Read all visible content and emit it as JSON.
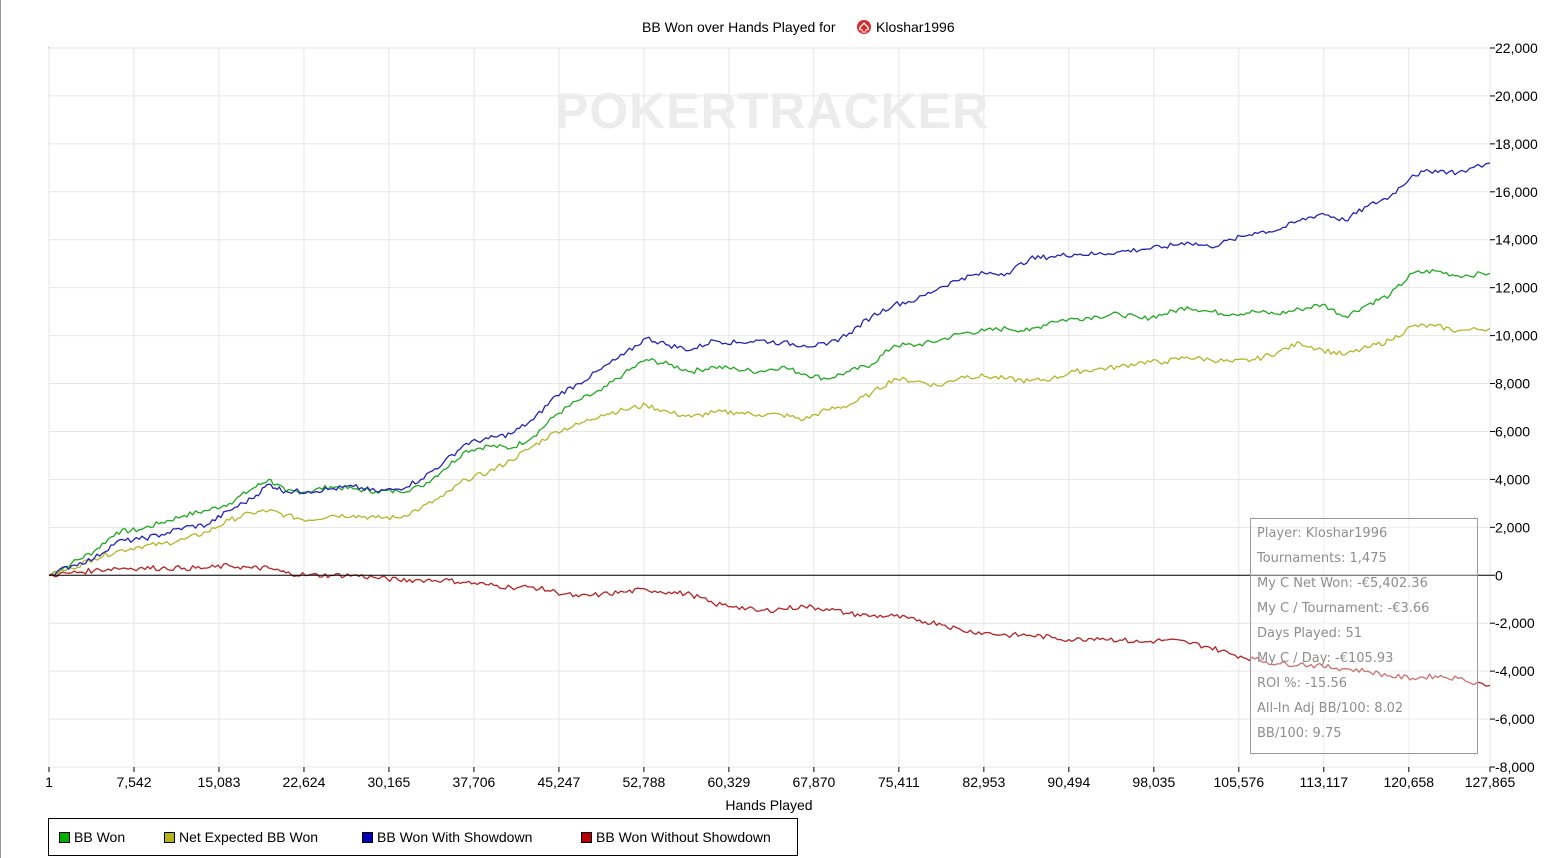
{
  "chart_data": {
    "type": "line",
    "title": "BB Won over Hands Played for",
    "player_name": "Kloshar1996",
    "site_icon": "pokerstars-spade-icon",
    "watermark": "POKERTRACKER",
    "xlabel": "Hands Played",
    "ylabel": "",
    "x_ticks": [
      "1",
      "7,542",
      "15,083",
      "22,624",
      "30,165",
      "37,706",
      "45,247",
      "52,788",
      "60,329",
      "67,870",
      "75,411",
      "82,953",
      "90,494",
      "98,035",
      "105,576",
      "113,117",
      "120,658",
      "127,865"
    ],
    "y_ticks": [
      "22,000",
      "20,000",
      "18,000",
      "16,000",
      "14,000",
      "12,000",
      "10,000",
      "8,000",
      "6,000",
      "4,000",
      "2,000",
      "0",
      "-2,000",
      "-4,000",
      "-6,000",
      "-8,000"
    ],
    "xlim": [
      1,
      127865
    ],
    "ylim": [
      -8000,
      22000
    ],
    "grid": true,
    "legend_position": "bottom-left",
    "x": [
      1,
      2000,
      4000,
      6000,
      8000,
      10000,
      12000,
      14000,
      16000,
      18000,
      19500,
      21000,
      23000,
      25000,
      27000,
      29000,
      31000,
      33000,
      35000,
      37000,
      39000,
      41000,
      43000,
      45000,
      47000,
      49000,
      51000,
      53000,
      55000,
      57000,
      59000,
      61000,
      63000,
      65000,
      67000,
      69000,
      71000,
      73000,
      75000,
      77000,
      79000,
      81000,
      83000,
      85000,
      87000,
      89000,
      91000,
      93000,
      95000,
      97000,
      99000,
      101000,
      103000,
      105000,
      107000,
      109000,
      111000,
      113000,
      115000,
      117000,
      119000,
      121000,
      123000,
      125000,
      127865
    ],
    "series": [
      {
        "name": "BB Won",
        "color": "#22a822",
        "swatch": "#00b000",
        "values": [
          0,
          500,
          1000,
          1800,
          1900,
          2200,
          2500,
          2700,
          3000,
          3600,
          4000,
          3500,
          3500,
          3700,
          3600,
          3500,
          3500,
          3700,
          4400,
          5200,
          5400,
          5300,
          5800,
          6700,
          7300,
          7700,
          8400,
          9000,
          8800,
          8500,
          8700,
          8600,
          8500,
          8700,
          8400,
          8200,
          8500,
          8800,
          9600,
          9600,
          9800,
          10100,
          10200,
          10300,
          10200,
          10600,
          10700,
          10800,
          10900,
          10700,
          10900,
          11200,
          11000,
          10900,
          11000,
          10900,
          11100,
          11300,
          10800,
          11300,
          11700,
          12600,
          12700,
          12500,
          12600
        ]
      },
      {
        "name": "Net Expected BB Won",
        "color": "#b5b52a",
        "swatch": "#b5b51a",
        "values": [
          0,
          300,
          700,
          1000,
          1200,
          1300,
          1500,
          1800,
          2300,
          2600,
          2700,
          2500,
          2300,
          2500,
          2500,
          2400,
          2400,
          2800,
          3300,
          4000,
          4300,
          4800,
          5400,
          6000,
          6300,
          6700,
          6900,
          7100,
          6800,
          6600,
          6800,
          6800,
          6700,
          6700,
          6500,
          6900,
          7100,
          7600,
          8200,
          8100,
          7900,
          8300,
          8300,
          8200,
          8100,
          8200,
          8500,
          8600,
          8700,
          8900,
          8900,
          9100,
          9000,
          8900,
          9000,
          9300,
          9700,
          9400,
          9200,
          9500,
          9800,
          10400,
          10400,
          10200,
          10300
        ]
      },
      {
        "name": "BB Won With Showdown",
        "color": "#2424b4",
        "swatch": "#0000b4",
        "values": [
          0,
          400,
          700,
          1400,
          1500,
          1700,
          2000,
          2100,
          2700,
          3200,
          3800,
          3500,
          3500,
          3600,
          3700,
          3500,
          3600,
          4000,
          4700,
          5500,
          5700,
          5900,
          6500,
          7500,
          8000,
          8600,
          9200,
          9900,
          9600,
          9400,
          9800,
          9700,
          9800,
          9700,
          9600,
          9600,
          10100,
          10800,
          11300,
          11500,
          12000,
          12400,
          12600,
          12600,
          13200,
          13300,
          13400,
          13400,
          13500,
          13600,
          13700,
          13900,
          13700,
          14000,
          14300,
          14400,
          14800,
          15100,
          14800,
          15400,
          15800,
          16700,
          16900,
          16800,
          17200
        ]
      },
      {
        "name": "BB Won Without Showdown",
        "color": "#b42424",
        "swatch": "#b40000",
        "values": [
          0,
          100,
          200,
          300,
          300,
          300,
          300,
          300,
          400,
          300,
          300,
          100,
          0,
          0,
          0,
          -100,
          -200,
          -200,
          -200,
          -300,
          -400,
          -500,
          -500,
          -700,
          -900,
          -800,
          -700,
          -600,
          -700,
          -800,
          -1200,
          -1300,
          -1500,
          -1400,
          -1300,
          -1400,
          -1600,
          -1700,
          -1700,
          -1900,
          -2000,
          -2300,
          -2400,
          -2500,
          -2500,
          -2600,
          -2700,
          -2600,
          -2700,
          -2800,
          -2700,
          -2800,
          -3000,
          -3300,
          -3500,
          -3700,
          -3700,
          -3800,
          -3900,
          -4000,
          -4200,
          -4300,
          -4200,
          -4300,
          -4600
        ]
      }
    ]
  },
  "stats": [
    "Player: Kloshar1996",
    "Tournaments: 1,475",
    "My C Net Won: -€5,402.36",
    "My C / Tournament: -€3.66",
    "Days Played: 51",
    "My C / Day: -€105.93",
    "ROI %: -15.56",
    "All-In Adj BB/100: 8.02",
    "BB/100: 9.75"
  ]
}
